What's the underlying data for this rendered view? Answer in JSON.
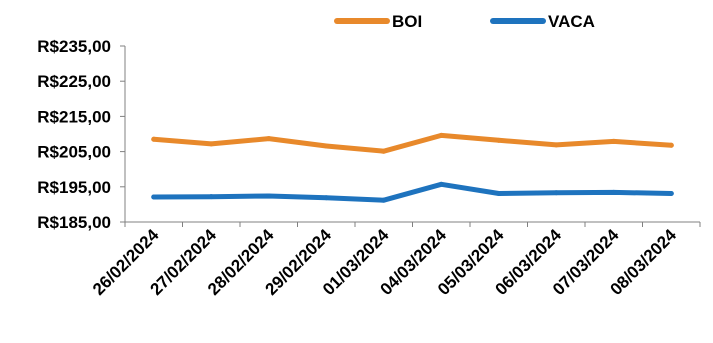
{
  "chart_data": {
    "type": "line",
    "title": "",
    "xlabel": "",
    "ylabel": "",
    "categories": [
      "26/02/2024",
      "27/02/2024",
      "28/02/2024",
      "29/02/2024",
      "01/03/2024",
      "04/03/2024",
      "05/03/2024",
      "06/03/2024",
      "07/03/2024",
      "08/03/2024"
    ],
    "y_ticks": [
      "R$185,00",
      "R$195,00",
      "R$205,00",
      "R$215,00",
      "R$225,00",
      "R$235,00"
    ],
    "ylim": [
      185,
      235
    ],
    "grid": false,
    "legend_position": "top-right",
    "series": [
      {
        "name": "BOI",
        "color": "#E8892B",
        "values": [
          208.5,
          207.2,
          208.7,
          206.6,
          205.1,
          209.6,
          208.2,
          206.9,
          207.9,
          206.8
        ]
      },
      {
        "name": "VACA",
        "color": "#1E73BE",
        "values": [
          192.1,
          192.2,
          192.4,
          191.9,
          191.2,
          195.7,
          193.1,
          193.3,
          193.4,
          193.1
        ]
      }
    ]
  }
}
